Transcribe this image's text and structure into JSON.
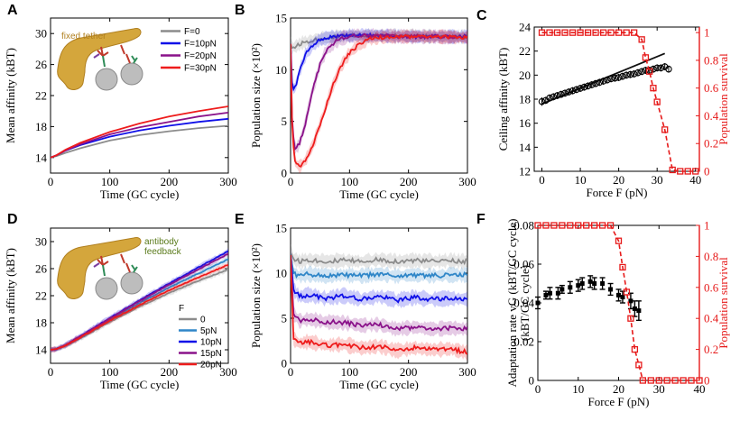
{
  "figure": {
    "colors": {
      "gray": "#8c8c8c",
      "blue_light": "#2f86c8",
      "blue": "#1010e8",
      "purple": "#8a128a",
      "red": "#ee1c1c",
      "black": "#111111",
      "red_dash": "#e61a1a",
      "gold": "#d4a63c",
      "gold_dark": "#b07f1f"
    }
  },
  "chart_data": [
    {
      "panel": "A",
      "type": "line",
      "title": "",
      "annotation": "fixed tether",
      "xlabel": "Time (GC cycle)",
      "ylabel": "Mean affinity (kBT)",
      "xlim": [
        0,
        300
      ],
      "ylim": [
        12,
        32
      ],
      "xticks": [
        "0",
        "100",
        "200",
        "300"
      ],
      "yticks": [
        "14",
        "18",
        "22",
        "26",
        "30"
      ],
      "legend_title": "",
      "legend_position": "top-right",
      "series": [
        {
          "name": "F=0",
          "color": "gray",
          "x": [
            0,
            10,
            25,
            50,
            100,
            150,
            200,
            250,
            300
          ],
          "y": [
            14,
            14.2,
            14.6,
            15.2,
            16.2,
            16.9,
            17.4,
            17.8,
            18.1
          ]
        },
        {
          "name": "F=10pN",
          "color": "blue",
          "x": [
            0,
            10,
            25,
            50,
            100,
            150,
            200,
            250,
            300
          ],
          "y": [
            14,
            14.3,
            14.9,
            15.6,
            16.7,
            17.5,
            18.1,
            18.6,
            19.0
          ]
        },
        {
          "name": "F=20pN",
          "color": "purple",
          "x": [
            0,
            10,
            25,
            50,
            100,
            150,
            200,
            250,
            300
          ],
          "y": [
            14,
            14.3,
            14.9,
            15.7,
            17.0,
            17.9,
            18.6,
            19.3,
            19.8
          ]
        },
        {
          "name": "F=30pN",
          "color": "red",
          "x": [
            0,
            10,
            25,
            50,
            100,
            150,
            200,
            250,
            300
          ],
          "y": [
            14,
            14.3,
            15.0,
            15.9,
            17.3,
            18.4,
            19.3,
            20.0,
            20.6
          ]
        }
      ]
    },
    {
      "panel": "B",
      "type": "line",
      "title": "",
      "xlabel": "Time (GC cycle)",
      "ylabel": "Population size (×10²)",
      "xlim": [
        0,
        300
      ],
      "ylim": [
        0,
        15
      ],
      "xticks": [
        "0",
        "100",
        "200",
        "300"
      ],
      "yticks": [
        "0",
        "5",
        "10",
        "15"
      ],
      "series": [
        {
          "name": "F=0",
          "color": "gray",
          "x": [
            0,
            2,
            10,
            20,
            40,
            60,
            80,
            100,
            150,
            200,
            250,
            300
          ],
          "y": [
            12.5,
            12.1,
            12.3,
            12.6,
            12.9,
            13.1,
            13.2,
            13.3,
            13.3,
            13.3,
            13.2,
            13.2
          ]
        },
        {
          "name": "F=10pN",
          "color": "blue",
          "x": [
            0,
            3,
            8,
            15,
            25,
            35,
            50,
            70,
            100,
            150,
            200,
            250,
            300
          ],
          "y": [
            12.5,
            8.0,
            8.3,
            9.8,
            11.4,
            12.3,
            12.9,
            13.2,
            13.3,
            13.3,
            13.2,
            13.2,
            13.2
          ]
        },
        {
          "name": "F=20pN",
          "color": "purple",
          "x": [
            0,
            3,
            8,
            15,
            25,
            35,
            50,
            60,
            75,
            90,
            110,
            150,
            200,
            250,
            300
          ],
          "y": [
            12.5,
            4.0,
            2.3,
            2.8,
            4.8,
            7.5,
            10.5,
            11.8,
            12.7,
            13.1,
            13.3,
            13.3,
            13.2,
            13.2,
            13.1
          ]
        },
        {
          "name": "F=30pN",
          "color": "red",
          "x": [
            0,
            3,
            8,
            15,
            25,
            40,
            55,
            70,
            85,
            100,
            115,
            130,
            150,
            200,
            250,
            300
          ],
          "y": [
            12.5,
            3.5,
            1.0,
            0.6,
            1.2,
            3.0,
            5.6,
            8.2,
            10.3,
            11.6,
            12.4,
            12.9,
            13.1,
            13.2,
            13.2,
            13.1
          ]
        }
      ]
    },
    {
      "panel": "C",
      "type": "scatter",
      "title": "",
      "xlabel": "Force F (pN)",
      "ylabel": "Ceiling affinity (kBT)",
      "ylabel_right": "Population survival",
      "xlim": [
        -2,
        41
      ],
      "ylim": [
        12,
        24
      ],
      "ylim_right": [
        0,
        1.04
      ],
      "xticks": [
        "0",
        "10",
        "20",
        "30",
        "40"
      ],
      "yticks": [
        "12",
        "14",
        "16",
        "18",
        "20",
        "22",
        "24"
      ],
      "yticks_right": [
        "0",
        "0.2",
        "0.4",
        "0.6",
        "0.8",
        "1"
      ],
      "series": [
        {
          "name": "ceiling affinity",
          "color": "black",
          "marker": "circle",
          "x": [
            0,
            1,
            2,
            3,
            4,
            5,
            6,
            7,
            8,
            9,
            10,
            11,
            12,
            13,
            14,
            15,
            16,
            17,
            18,
            19,
            20,
            21,
            22,
            23,
            24,
            25,
            26,
            27,
            28,
            29,
            30,
            31,
            32,
            33
          ],
          "y": [
            17.8,
            17.9,
            18.1,
            18.2,
            18.3,
            18.4,
            18.5,
            18.6,
            18.7,
            18.8,
            18.9,
            19.0,
            19.1,
            19.2,
            19.3,
            19.4,
            19.5,
            19.6,
            19.7,
            19.75,
            19.8,
            19.9,
            20.0,
            20.05,
            20.1,
            20.2,
            20.3,
            20.4,
            20.4,
            20.5,
            20.6,
            20.6,
            20.7,
            20.5
          ],
          "err": [
            0.35,
            0.3,
            0.3,
            0.3,
            0.3,
            0.3,
            0.3,
            0.3,
            0.3,
            0.3,
            0.3,
            0.3,
            0.3,
            0.3,
            0.3,
            0.3,
            0.3,
            0.3,
            0.3,
            0.3,
            0.3,
            0.3,
            0.3,
            0.3,
            0.3,
            0.3,
            0.3,
            0.3,
            0.3,
            0.3,
            0.3,
            0.3,
            0.3,
            0.3
          ]
        },
        {
          "name": "linear fit",
          "color": "black",
          "style": "line",
          "x": [
            0,
            32
          ],
          "y": [
            17.6,
            21.8
          ]
        },
        {
          "name": "population survival",
          "color": "red_dash",
          "marker": "square",
          "axis": "right",
          "dashed": true,
          "x": [
            0,
            2,
            4,
            6,
            8,
            10,
            12,
            14,
            16,
            18,
            20,
            22,
            24,
            26,
            27,
            28,
            29,
            30,
            32,
            34,
            36,
            38,
            40
          ],
          "y": [
            1,
            1,
            1,
            1,
            1,
            1,
            1,
            1,
            1,
            1,
            1,
            1,
            1,
            0.95,
            0.82,
            0.72,
            0.6,
            0.5,
            0.3,
            0.01,
            0,
            0,
            0
          ]
        }
      ]
    },
    {
      "panel": "D",
      "type": "line",
      "title": "",
      "annotation": "antibody feedback",
      "xlabel": "Time (GC cycle)",
      "ylabel": "Mean affinity (kBT)",
      "xlim": [
        0,
        300
      ],
      "ylim": [
        12,
        32
      ],
      "xticks": [
        "0",
        "100",
        "200",
        "300"
      ],
      "yticks": [
        "14",
        "18",
        "22",
        "26",
        "30"
      ],
      "legend_title": "F",
      "legend_position": "bottom-right",
      "series": [
        {
          "name": "0",
          "color": "gray",
          "x": [
            0,
            10,
            25,
            50,
            100,
            150,
            200,
            250,
            300
          ],
          "y": [
            14,
            14.1,
            14.6,
            15.7,
            18.1,
            20.4,
            22.4,
            24.2,
            25.9
          ]
        },
        {
          "name": "5pN",
          "color": "blue_light",
          "x": [
            0,
            10,
            25,
            50,
            100,
            150,
            200,
            250,
            300
          ],
          "y": [
            14,
            14.1,
            14.6,
            15.8,
            18.4,
            20.9,
            23.2,
            25.3,
            27.4
          ]
        },
        {
          "name": "10pN",
          "color": "blue",
          "x": [
            0,
            10,
            25,
            50,
            100,
            150,
            200,
            250,
            300
          ],
          "y": [
            14,
            14.1,
            14.7,
            16.0,
            18.7,
            21.3,
            23.8,
            26.2,
            28.6
          ]
        },
        {
          "name": "15pN",
          "color": "purple",
          "x": [
            0,
            10,
            25,
            50,
            100,
            150,
            200,
            250,
            300
          ],
          "y": [
            14,
            14.1,
            14.7,
            16.0,
            18.6,
            21.2,
            23.6,
            25.9,
            28.2
          ]
        },
        {
          "name": "20pN",
          "color": "red",
          "x": [
            0,
            10,
            25,
            50,
            100,
            150,
            200,
            250,
            300
          ],
          "y": [
            14,
            14.1,
            14.6,
            15.8,
            18.3,
            20.6,
            22.8,
            24.7,
            26.6
          ]
        }
      ]
    },
    {
      "panel": "E",
      "type": "line",
      "title": "",
      "xlabel": "Time (GC cycle)",
      "ylabel": "Population size (×10²)",
      "xlim": [
        0,
        300
      ],
      "ylim": [
        0,
        15
      ],
      "xticks": [
        "0",
        "100",
        "200",
        "300"
      ],
      "yticks": [
        "0",
        "5",
        "10",
        "15"
      ],
      "series": [
        {
          "name": "0",
          "color": "gray",
          "x": [
            0,
            5,
            15,
            30,
            60,
            90,
            120,
            150,
            180,
            210,
            240,
            270,
            300
          ],
          "y": [
            12.3,
            11.6,
            11.3,
            11.5,
            11.3,
            11.4,
            11.3,
            11.5,
            11.3,
            11.4,
            11.3,
            11.4,
            11.3
          ]
        },
        {
          "name": "5pN",
          "color": "blue_light",
          "x": [
            0,
            5,
            15,
            30,
            60,
            90,
            120,
            150,
            180,
            210,
            240,
            270,
            300
          ],
          "y": [
            12.0,
            10.0,
            9.7,
            9.9,
            9.7,
            9.8,
            9.7,
            9.9,
            9.7,
            9.8,
            9.7,
            9.8,
            9.8
          ]
        },
        {
          "name": "10pN",
          "color": "blue",
          "x": [
            0,
            5,
            15,
            30,
            60,
            90,
            120,
            150,
            180,
            210,
            240,
            270,
            300
          ],
          "y": [
            12.0,
            8.2,
            7.4,
            7.6,
            7.2,
            7.5,
            7.1,
            7.4,
            7.0,
            7.3,
            7.1,
            7.2,
            7.1
          ]
        },
        {
          "name": "15pN",
          "color": "purple",
          "x": [
            0,
            5,
            15,
            30,
            60,
            90,
            120,
            150,
            180,
            210,
            240,
            270,
            300
          ],
          "y": [
            12.0,
            5.5,
            4.7,
            4.9,
            4.6,
            4.5,
            4.2,
            4.3,
            3.8,
            4.0,
            3.8,
            3.9,
            3.8
          ]
        },
        {
          "name": "20pN",
          "color": "red",
          "x": [
            0,
            5,
            15,
            30,
            60,
            90,
            120,
            150,
            180,
            210,
            240,
            270,
            300
          ],
          "y": [
            12.0,
            2.7,
            2.2,
            2.4,
            2.0,
            2.1,
            1.7,
            1.9,
            1.4,
            1.7,
            1.5,
            1.6,
            1.2
          ]
        }
      ]
    },
    {
      "panel": "F",
      "type": "scatter",
      "title": "",
      "xlabel": "Force F (pN)",
      "ylabel": "Adaptation rate vG (kBT/GC cycle)",
      "ylabel_right": "Population survival",
      "xlim": [
        0,
        40
      ],
      "ylim": [
        0,
        0.08
      ],
      "ylim_right": [
        0,
        1
      ],
      "xticks": [
        "0",
        "10",
        "20",
        "30",
        "40"
      ],
      "yticks": [
        "0",
        "0.02",
        "0.04",
        "0.06",
        "0.08"
      ],
      "yticks_right": [
        "0",
        "0.2",
        "0.4",
        "0.6",
        "0.8",
        "1"
      ],
      "series": [
        {
          "name": "adaptation rate",
          "color": "black",
          "marker": "square",
          "x": [
            0,
            2,
            3,
            5,
            6,
            8,
            10,
            11,
            13,
            14,
            16,
            18,
            20,
            21,
            23,
            24,
            25
          ],
          "y": [
            0.04,
            0.044,
            0.045,
            0.045,
            0.047,
            0.048,
            0.049,
            0.05,
            0.051,
            0.05,
            0.05,
            0.047,
            0.044,
            0.043,
            0.041,
            0.037,
            0.036
          ],
          "err": [
            0.003,
            0.002,
            0.003,
            0.003,
            0.002,
            0.003,
            0.003,
            0.003,
            0.003,
            0.003,
            0.003,
            0.003,
            0.003,
            0.003,
            0.004,
            0.004,
            0.005
          ]
        },
        {
          "name": "population survival",
          "color": "red_dash",
          "marker": "square",
          "axis": "right",
          "dashed": true,
          "x": [
            0,
            2,
            4,
            6,
            8,
            10,
            12,
            14,
            16,
            18,
            20,
            21,
            22,
            23,
            24,
            25,
            26,
            28,
            30,
            32,
            34,
            36,
            38,
            40
          ],
          "y": [
            1,
            1,
            1,
            1,
            1,
            1,
            1,
            1,
            1,
            1,
            0.9,
            0.73,
            0.57,
            0.4,
            0.2,
            0.1,
            0,
            0,
            0,
            0,
            0,
            0,
            0,
            0
          ]
        }
      ]
    }
  ]
}
